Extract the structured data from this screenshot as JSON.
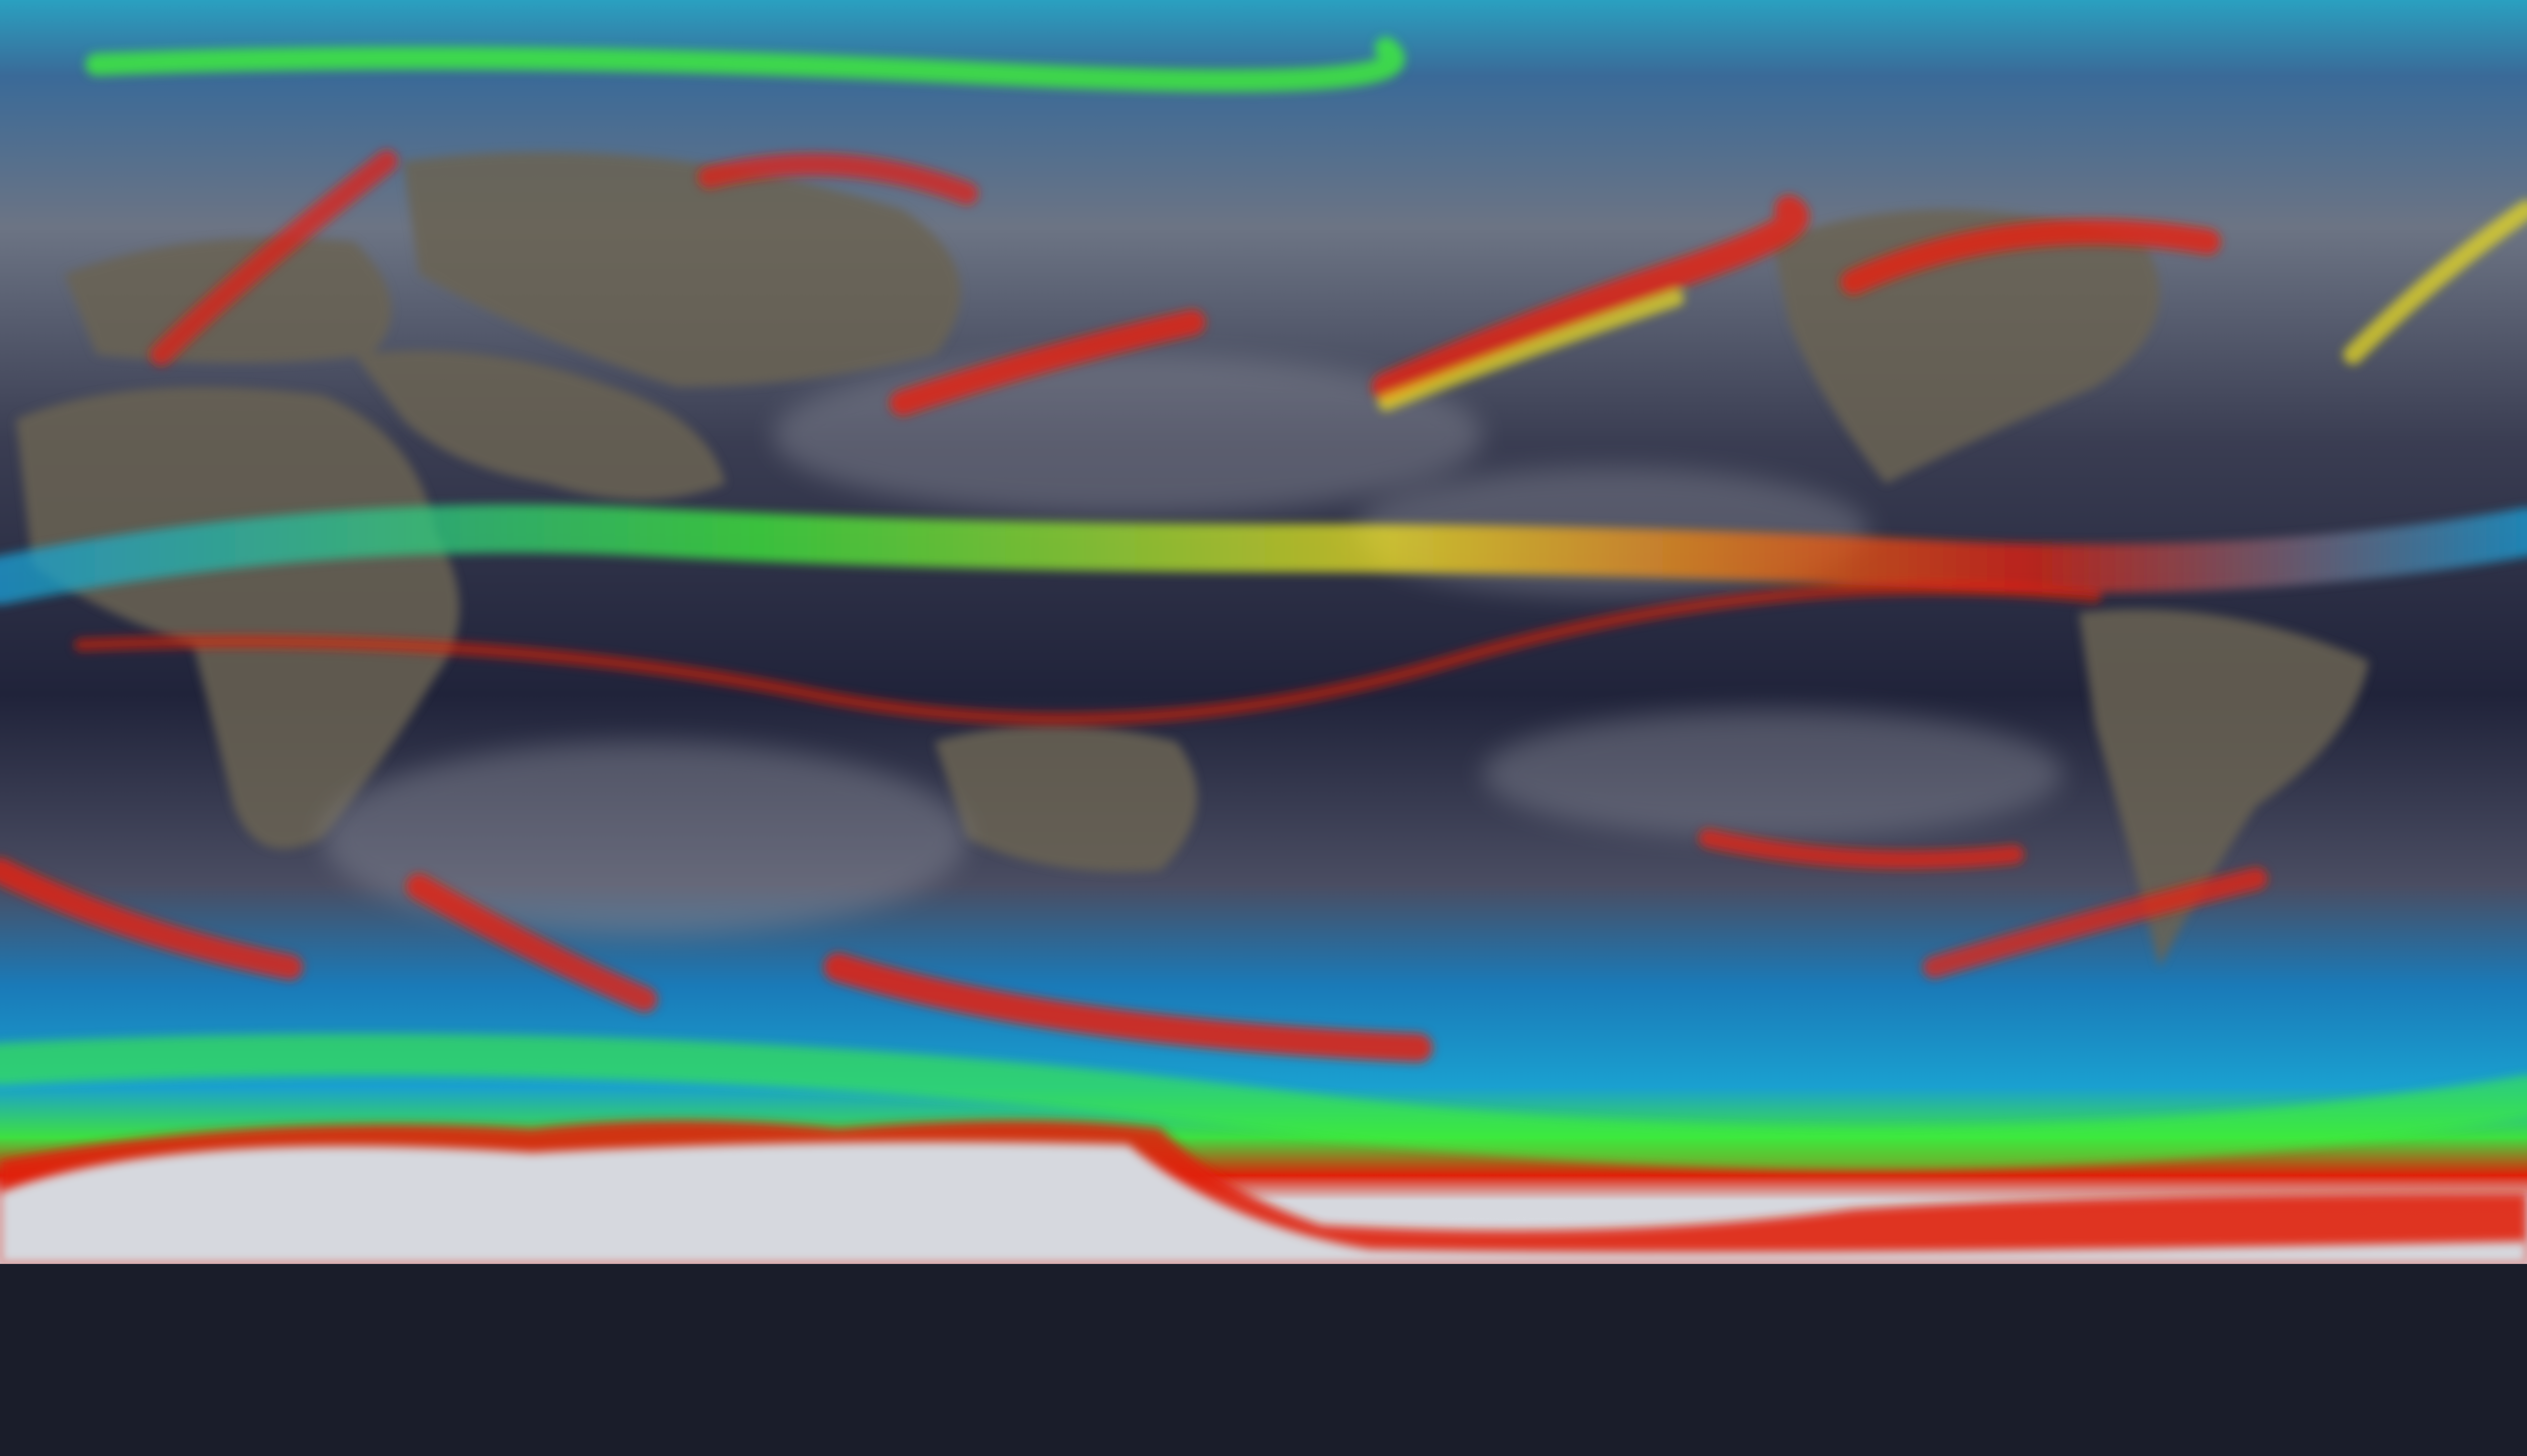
{
  "map": {
    "projection": "equirectangular",
    "colors": {
      "ocean": "#23263a",
      "cloud": "#8a8c96",
      "land": "#6b6452",
      "ice": "#d6d8de",
      "low": "#0a2a8a",
      "mid_low": "#1aa0d8",
      "mid": "#3ef03a",
      "mid_high": "#f0e020",
      "high": "#e8200a",
      "arctic": "#2aa8c8"
    }
  }
}
